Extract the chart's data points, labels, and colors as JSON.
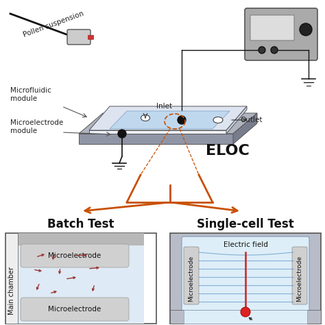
{
  "bg_color": "#ffffff",
  "arrow_color": "#c85000",
  "batch_title": "Batch Test",
  "single_title": "Single-cell Test",
  "eloc_label": "ELOC",
  "electric_field_label": "Electric field",
  "microfluidic_label": "Microfluidic\nmodule",
  "microelectrode_mod_label": "Microelectrode\nmodule",
  "inlet_label": "Inlet",
  "outlet_label": "Outlet",
  "pollen_label": "Pollen suspension",
  "main_chamber_label": "Main chamber",
  "top_micro_label": "Microelectrode",
  "bot_micro_label": "Microelectrode",
  "left_micro_label": "Microelectrode",
  "right_micro_label": "Microelectrode"
}
